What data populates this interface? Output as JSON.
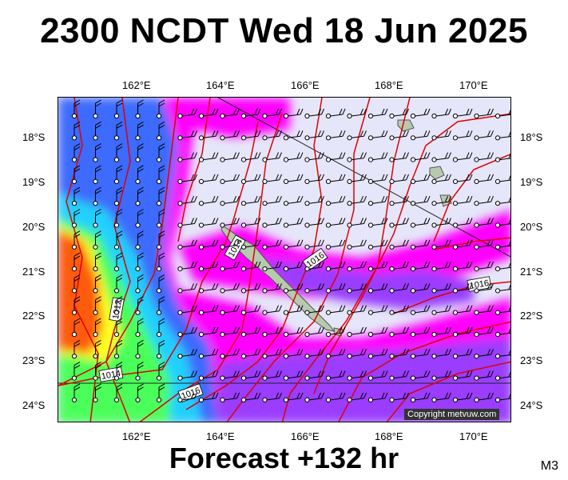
{
  "title": "2300 NCDT Wed 18 Jun 2025",
  "footer": "Forecast +132 hr",
  "map_code": "M3",
  "copyright": "Copyright metvuw.com",
  "lon_labels": [
    "162°E",
    "164°E",
    "166°E",
    "168°E",
    "170°E"
  ],
  "lat_labels": [
    "18°S",
    "19°S",
    "20°S",
    "21°S",
    "22°S",
    "23°S",
    "24°S"
  ],
  "isobar_labels": [
    "1014",
    "1016",
    "1012",
    "1014",
    "1016",
    "1016"
  ],
  "colors": {
    "background_calm": "#e6e6fa",
    "magenta": "#ff00ff",
    "purple": "#9a3cff",
    "blue": "#3c6bff",
    "cyan": "#22d0ff",
    "green": "#4cff5a",
    "yellow": "#ffff22",
    "orange": "#ff5a10",
    "isobar": "#e00000"
  }
}
